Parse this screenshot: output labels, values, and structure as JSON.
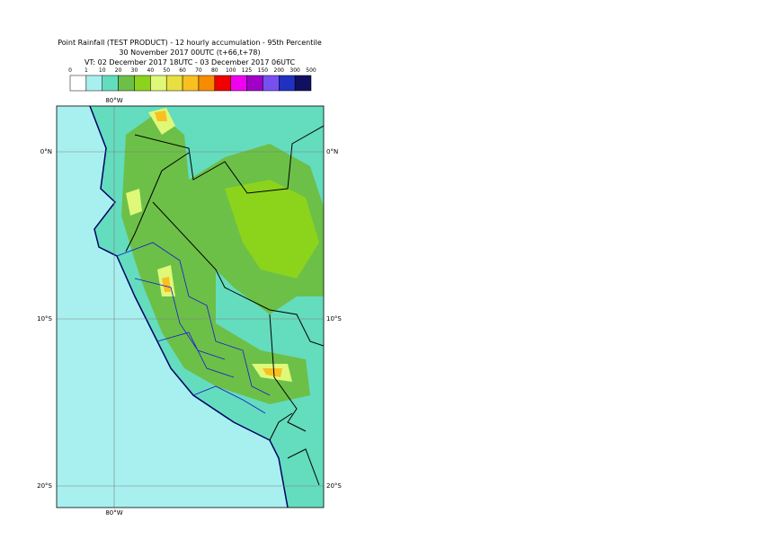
{
  "header": {
    "title": "Point Rainfall (TEST PRODUCT) - 12 hourly accumulation - 95th Percentile",
    "run": "30 November 2017 00UTC (t+66,t+78)",
    "validity": "VT: 02 December 2017 18UTC - 03 December 2017 06UTC"
  },
  "legend": {
    "labels": [
      0,
      1,
      10,
      20,
      30,
      40,
      50,
      60,
      70,
      80,
      100,
      125,
      150,
      200,
      300,
      500
    ],
    "colors": [
      "#ffffff",
      "#a8f0f0",
      "#64dcbe",
      "#6cc048",
      "#8cd41c",
      "#e0f878",
      "#e8e040",
      "#f8c020",
      "#f88c00",
      "#f00000",
      "#f000f0",
      "#a000c8",
      "#7850f0",
      "#2030c0",
      "#101060"
    ]
  },
  "map": {
    "longitude_labels": [
      "80°W"
    ],
    "latitude_labels": [
      "0°N",
      "10°S",
      "20°S"
    ]
  }
}
